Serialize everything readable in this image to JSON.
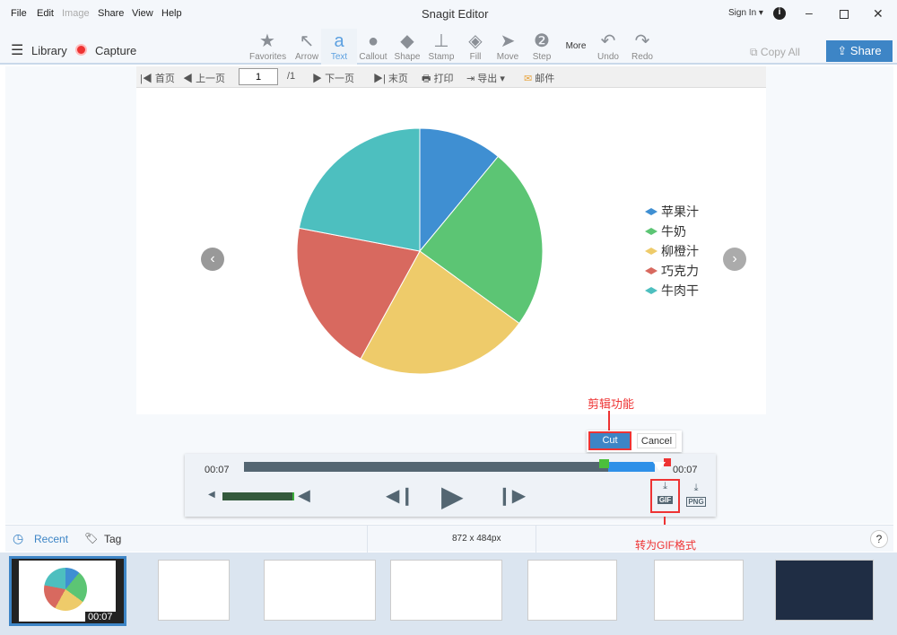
{
  "window": {
    "title": "Snagit Editor",
    "sign_in": "Sign In ▾"
  },
  "menu": [
    "File",
    "Edit",
    "Image",
    "Share",
    "View",
    "Help"
  ],
  "left": {
    "library": "Library",
    "capture": "Capture"
  },
  "tools": [
    {
      "icon": "star-icon",
      "label": "Favorites"
    },
    {
      "icon": "arrow-icon",
      "label": "Arrow"
    },
    {
      "icon": "text-icon",
      "label": "Text",
      "selected": true
    },
    {
      "icon": "callout-icon",
      "label": "Callout"
    },
    {
      "icon": "shape-icon",
      "label": "Shape"
    },
    {
      "icon": "stamp-icon",
      "label": "Stamp"
    },
    {
      "icon": "fill-icon",
      "label": "Fill"
    },
    {
      "icon": "move-icon",
      "label": "Move"
    },
    {
      "icon": "step-icon",
      "label": "Step"
    },
    {
      "icon": "more-icon",
      "label": "More"
    },
    {
      "icon": "undo-icon",
      "label": "Undo"
    },
    {
      "icon": "redo-icon",
      "label": "Redo"
    }
  ],
  "right": {
    "copy_all": "Copy All",
    "share": "Share"
  },
  "pdfbar": {
    "first": "首页",
    "prev": "上一页",
    "page": "1",
    "total": "/1",
    "next": "下一页",
    "last": "末页",
    "print": "打印",
    "export": "导出 ▾",
    "mail": "邮件"
  },
  "chart_data": {
    "type": "pie",
    "categories": [
      "苹果汁",
      "牛奶",
      "柳橙汁",
      "巧克力",
      "牛肉干"
    ],
    "values": [
      11,
      24,
      23,
      20,
      22
    ],
    "colors": [
      "#3f8fd2",
      "#5cc574",
      "#eecb6a",
      "#d8695f",
      "#4dbfbf"
    ],
    "legend": "right"
  },
  "player": {
    "time_start": "00:07",
    "time_end": "00:07",
    "cut": "Cut",
    "cancel": "Cancel",
    "gif": "GIF",
    "png": "PNG",
    "volume": 1.0,
    "annotation_cut": "剪辑功能",
    "annotation_gif": "转为GIF格式"
  },
  "status": {
    "recent": "Recent",
    "tag": "Tag",
    "dimensions": "872 x 484px",
    "help": "?"
  },
  "tray": {
    "first_duration": "00:07"
  }
}
